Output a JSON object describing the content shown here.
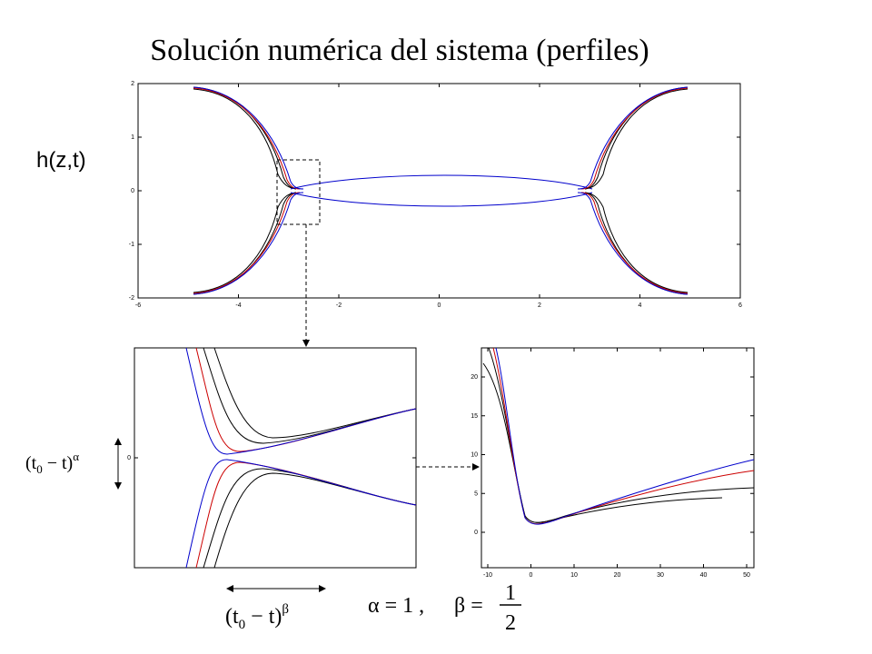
{
  "title": "Solución numérica del sistema (perfiles)",
  "y_label": "h(z,t)",
  "main_plot": {
    "xticks": [
      "-6",
      "-4",
      "-2",
      "0",
      "2",
      "4",
      "6"
    ],
    "yticks": [
      "2",
      "1",
      "0",
      "-1",
      "-2"
    ]
  },
  "zoom_plot": {
    "yticks": [
      "0"
    ]
  },
  "right_plot": {
    "xticks": [
      "-10",
      "0",
      "10",
      "20",
      "30",
      "40",
      "50"
    ],
    "yticks": [
      "20",
      "15",
      "10",
      "5",
      "0"
    ]
  },
  "annotations": {
    "vertical": {
      "open": "(t",
      "sub": "0",
      "rest": " − t)",
      "sup": "α"
    },
    "horizontal": {
      "open": "(t",
      "sub": "0",
      "rest": " − t)",
      "sup": "β"
    },
    "exponents": {
      "alpha": "α = 1 ,",
      "beta": "β =",
      "numerator": "1",
      "denominator": "2"
    }
  }
}
